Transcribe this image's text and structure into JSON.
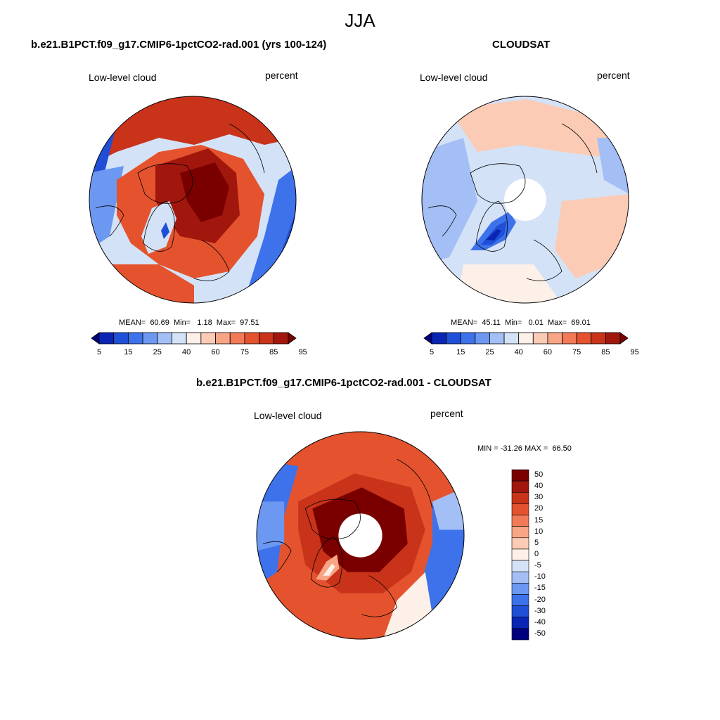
{
  "season": "JJA",
  "panels": [
    {
      "title": "b.e21.B1PCT.f09_g17.CMIP6-1pctCO2-rad.001 (yrs 100-124)",
      "left_label": "Low-level cloud",
      "right_label": "percent",
      "stats": "MEAN=  60.69  Min=   1.18  Max=  97.51",
      "mean": 60.69,
      "min": 1.18,
      "max": 97.51
    },
    {
      "title": "CLOUDSAT",
      "left_label": "Low-level cloud",
      "right_label": "percent",
      "stats": "MEAN=  45.11  Min=   0.01  Max=  69.01",
      "mean": 45.11,
      "min": 0.01,
      "max": 69.01
    },
    {
      "title": "b.e21.B1PCT.f09_g17.CMIP6-1pctCO2-rad.001 - CLOUDSAT",
      "left_label": "Low-level cloud",
      "right_label": "percent",
      "stats": "MIN = -31.26 MAX =  66.50",
      "min": -31.26,
      "max": 66.5
    }
  ],
  "abs_colorbar": {
    "tick_labels": [
      "5",
      "15",
      "25",
      "40",
      "60",
      "75",
      "85",
      "95"
    ],
    "colors": [
      "#00007f",
      "#0a24b3",
      "#1f4fd6",
      "#3d72ea",
      "#6c98f2",
      "#a3bff5",
      "#d4e2f7",
      "#fdf0e8",
      "#fbcbb6",
      "#f8a586",
      "#f27a57",
      "#e4532e",
      "#c9331a",
      "#a2170d",
      "#7a0000"
    ]
  },
  "diff_colorbar": {
    "tick_labels": [
      "50",
      "40",
      "30",
      "20",
      "15",
      "10",
      "5",
      "0",
      "-5",
      "-10",
      "-15",
      "-20",
      "-30",
      "-40",
      "-50"
    ],
    "colors": [
      "#7a0000",
      "#a2170d",
      "#c9331a",
      "#e4532e",
      "#f27a57",
      "#f8a586",
      "#fbcbb6",
      "#fdf0e8",
      "#d4e2f7",
      "#a3bff5",
      "#6c98f2",
      "#3d72ea",
      "#1f4fd6",
      "#0a24b3",
      "#00007f"
    ]
  }
}
